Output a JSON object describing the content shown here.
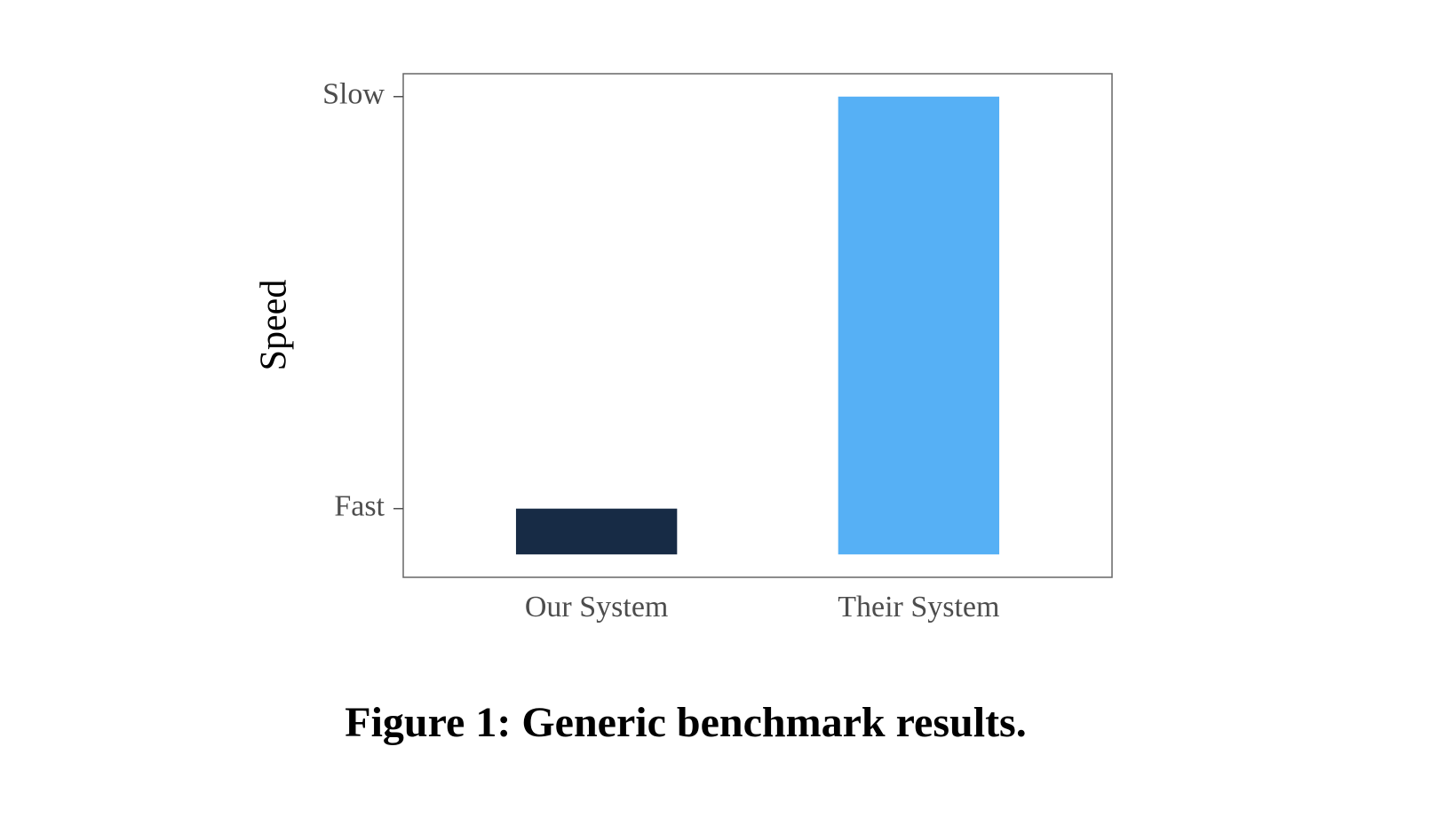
{
  "chart_data": {
    "type": "bar",
    "caption": "Figure 1: Generic benchmark results.",
    "y_label": "Speed",
    "categories": [
      "Our System",
      "Their System"
    ],
    "values": [
      1,
      10
    ],
    "colors": [
      "#172b45",
      "#56b0f5"
    ],
    "ylim": [
      -0.5,
      10.5
    ],
    "yticks": [
      {
        "value": 1,
        "label": "Fast"
      },
      {
        "value": 10,
        "label": "Slow"
      }
    ],
    "grid": false
  }
}
